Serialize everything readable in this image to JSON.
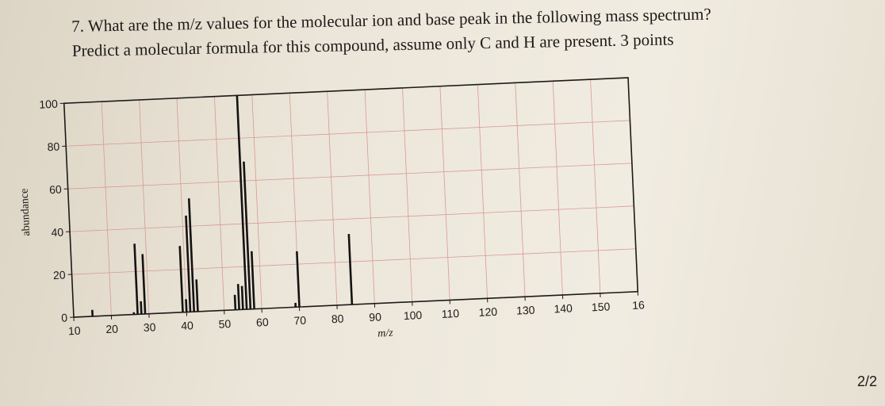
{
  "question": {
    "line1": "7. What are the m/z values for the molecular ion and base peak in the following mass spectrum?",
    "line2": "Predict a molecular formula for this compound, assume only C and H are present. 3 points"
  },
  "page_number": "2/2",
  "colors": {
    "grid": "#d79a93",
    "frame": "#1c1a18",
    "peak": "#141312"
  },
  "chart_data": {
    "type": "bar",
    "title": "",
    "xlabel": "m/z",
    "ylabel": "abundance",
    "xlim": [
      10,
      160
    ],
    "ylim": [
      0,
      100
    ],
    "x_tick_labels": [
      "10",
      "20",
      "30",
      "40",
      "50",
      "60",
      "70",
      "80",
      "90",
      "100",
      "110",
      "120",
      "130",
      "140",
      "150",
      "16"
    ],
    "y_tick_labels": [
      "0",
      "20",
      "40",
      "60",
      "80",
      "100"
    ],
    "grid": true,
    "peaks": [
      {
        "mz": 15,
        "abundance": 3
      },
      {
        "mz": 26,
        "abundance": 1
      },
      {
        "mz": 27,
        "abundance": 33
      },
      {
        "mz": 28,
        "abundance": 6
      },
      {
        "mz": 29,
        "abundance": 28
      },
      {
        "mz": 39,
        "abundance": 31
      },
      {
        "mz": 40,
        "abundance": 6
      },
      {
        "mz": 41,
        "abundance": 45
      },
      {
        "mz": 42,
        "abundance": 53
      },
      {
        "mz": 43,
        "abundance": 15
      },
      {
        "mz": 53,
        "abundance": 7
      },
      {
        "mz": 54,
        "abundance": 12
      },
      {
        "mz": 55,
        "abundance": 11
      },
      {
        "mz": 56,
        "abundance": 100
      },
      {
        "mz": 57,
        "abundance": 69
      },
      {
        "mz": 58,
        "abundance": 27
      },
      {
        "mz": 69,
        "abundance": 2
      },
      {
        "mz": 70,
        "abundance": 26
      },
      {
        "mz": 84,
        "abundance": 33
      }
    ]
  }
}
